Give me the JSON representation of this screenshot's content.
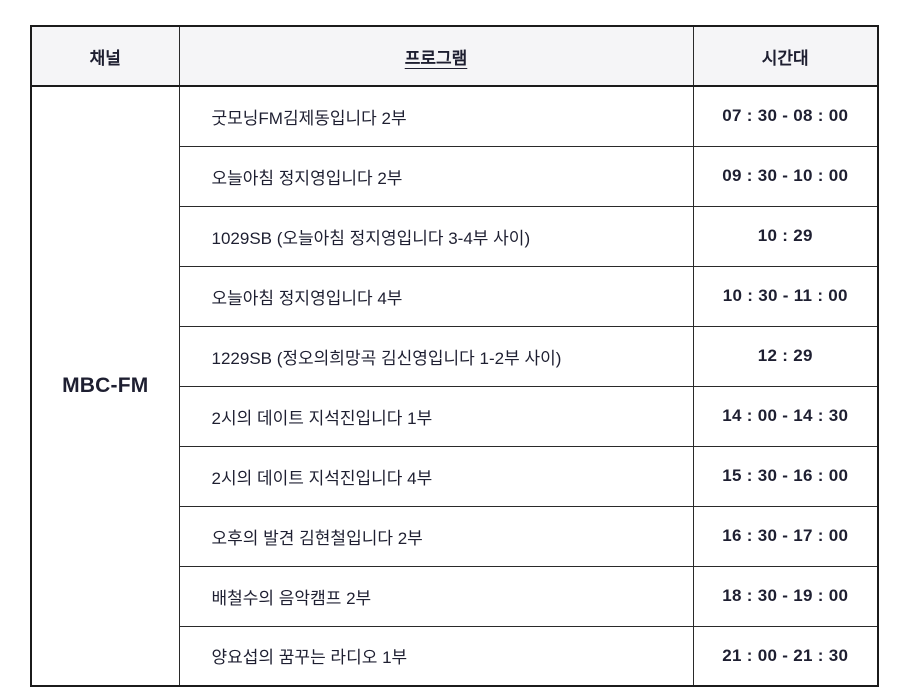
{
  "table": {
    "headers": {
      "channel": "채널",
      "program": "프로그램",
      "time": "시간대"
    },
    "channel": "MBC-FM",
    "rows": [
      {
        "program": "굿모닝FM김제동입니다 2부",
        "time": "07 : 30 - 08 : 00"
      },
      {
        "program": "오늘아침 정지영입니다 2부",
        "time": "09 : 30 - 10 : 00"
      },
      {
        "program": "1029SB (오늘아침 정지영입니다 3-4부 사이)",
        "time": "10 : 29"
      },
      {
        "program": "오늘아침 정지영입니다 4부",
        "time": "10 : 30 - 11 : 00"
      },
      {
        "program": "1229SB (정오의희망곡 김신영입니다 1-2부 사이)",
        "time": "12 : 29"
      },
      {
        "program": "2시의 데이트 지석진입니다 1부",
        "time": "14 : 00 - 14 : 30"
      },
      {
        "program": "2시의 데이트 지석진입니다 4부",
        "time": "15 : 30 - 16 : 00"
      },
      {
        "program": "오후의 발견 김현철입니다 2부",
        "time": "16 : 30 - 17 : 00"
      },
      {
        "program": "배철수의 음악캠프 2부",
        "time": "18 : 30 - 19 : 00"
      },
      {
        "program": "양요섭의 꿈꾸는 라디오 1부",
        "time": "21 : 00 - 21 : 30"
      }
    ],
    "colors": {
      "text": "#1e1f31",
      "header_bg": "#f5f5f7",
      "border": "#1b1b1b"
    }
  }
}
